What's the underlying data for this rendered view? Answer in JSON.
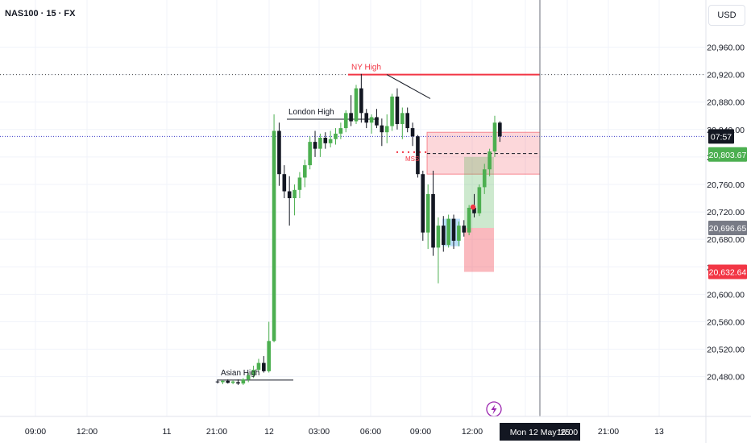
{
  "header": {
    "title": "NAS100 · 15 · FX",
    "currency_button": "USD"
  },
  "chart_data": {
    "type": "candlestick",
    "symbol": "NAS100",
    "interval": "15",
    "exchange": "FX",
    "currency": "USD",
    "y_ticks": [
      20480,
      20520,
      20560,
      20600,
      20640,
      20680,
      20720,
      20760,
      20800,
      20840,
      20880,
      20920,
      20960
    ],
    "x_ticks": [
      "09:00",
      "12:00",
      "11",
      "21:00",
      "12",
      "03:00",
      "06:00",
      "09:00",
      "12:00",
      "Mon 12 May '25",
      "16:00",
      "21:00",
      "13"
    ],
    "ylim": [
      20450,
      20990
    ],
    "price_labels": [
      {
        "text": "07:57",
        "value": 20830,
        "color": "#131722"
      },
      {
        "text": "20,803.67",
        "value": 20803.67,
        "color": "#4caf50"
      },
      {
        "text": "20,696.65",
        "value": 20696.65,
        "color": "#787b86"
      },
      {
        "text": "20,632.64",
        "value": 20632.64,
        "color": "#f23645"
      }
    ],
    "annotations": [
      {
        "text": "NY High",
        "value": 20920,
        "color": "#f23645"
      },
      {
        "text": "London High",
        "value": 20855,
        "color": "#131722"
      },
      {
        "text": "Asian High",
        "value": 20475,
        "color": "#131722"
      },
      {
        "text": "MSS",
        "value": 20807,
        "color": "#f23645"
      }
    ],
    "levels": {
      "ny_high": 20920,
      "current_price": 20830
    },
    "zones": {
      "supply": [
        20775,
        20836
      ],
      "long_target": [
        20800,
        20696.65
      ],
      "long_stop": [
        20696.65,
        20632.64
      ],
      "fvg": [
        20710,
        20670
      ]
    },
    "candles": [
      [
        20473,
        20476,
        20470,
        20472
      ],
      [
        20472,
        20475,
        20469,
        20474
      ],
      [
        20474,
        20476,
        20470,
        20471
      ],
      [
        20471,
        20475,
        20469,
        20473
      ],
      [
        20472,
        20476,
        20468,
        20470
      ],
      [
        20470,
        20478,
        20468,
        20476
      ],
      [
        20476,
        20486,
        20472,
        20482
      ],
      [
        20482,
        20496,
        20478,
        20490
      ],
      [
        20490,
        20506,
        20486,
        20500
      ],
      [
        20500,
        20510,
        20486,
        20488
      ],
      [
        20488,
        20560,
        20486,
        20532
      ],
      [
        20532,
        20862,
        20530,
        20838
      ],
      [
        20838,
        20850,
        20758,
        20775
      ],
      [
        20775,
        20788,
        20740,
        20750
      ],
      [
        20750,
        20772,
        20700,
        20740
      ],
      [
        20740,
        20760,
        20715,
        20752
      ],
      [
        20752,
        20778,
        20740,
        20770
      ],
      [
        20770,
        20796,
        20756,
        20788
      ],
      [
        20788,
        20830,
        20782,
        20822
      ],
      [
        20822,
        20838,
        20800,
        20812
      ],
      [
        20812,
        20834,
        20800,
        20828
      ],
      [
        20828,
        20836,
        20812,
        20820
      ],
      [
        20820,
        20838,
        20814,
        20826
      ],
      [
        20826,
        20842,
        20818,
        20834
      ],
      [
        20834,
        20850,
        20826,
        20842
      ],
      [
        20842,
        20868,
        20836,
        20864
      ],
      [
        20864,
        20890,
        20845,
        20852
      ],
      [
        20852,
        20905,
        20848,
        20900
      ],
      [
        20900,
        20921,
        20850,
        20864
      ],
      [
        20864,
        20870,
        20842,
        20850
      ],
      [
        20850,
        20862,
        20834,
        20858
      ],
      [
        20858,
        20870,
        20842,
        20846
      ],
      [
        20846,
        20856,
        20816,
        20836
      ],
      [
        20836,
        20862,
        20820,
        20845
      ],
      [
        20845,
        20892,
        20838,
        20888
      ],
      [
        20888,
        20900,
        20840,
        20848
      ],
      [
        20848,
        20872,
        20826,
        20864
      ],
      [
        20864,
        20872,
        20836,
        20842
      ],
      [
        20842,
        20850,
        20816,
        20830
      ],
      [
        20830,
        20832,
        20770,
        20775
      ],
      [
        20775,
        20780,
        20678,
        20690
      ],
      [
        20690,
        20760,
        20666,
        20746
      ],
      [
        20746,
        20780,
        20656,
        20668
      ],
      [
        20668,
        20712,
        20616,
        20700
      ],
      [
        20700,
        20714,
        20662,
        20672
      ],
      [
        20672,
        20716,
        20668,
        20710
      ],
      [
        20710,
        20716,
        20666,
        20678
      ],
      [
        20678,
        20706,
        20670,
        20700
      ],
      [
        20700,
        20708,
        20684,
        20690
      ],
      [
        20690,
        20730,
        20686,
        20726
      ],
      [
        20726,
        20746,
        20712,
        20718
      ],
      [
        20718,
        20760,
        20714,
        20756
      ],
      [
        20756,
        20790,
        20746,
        20782
      ],
      [
        20782,
        20812,
        20772,
        20808
      ],
      [
        20808,
        20860,
        20800,
        20850
      ],
      [
        20850,
        20852,
        20822,
        20830
      ]
    ]
  }
}
